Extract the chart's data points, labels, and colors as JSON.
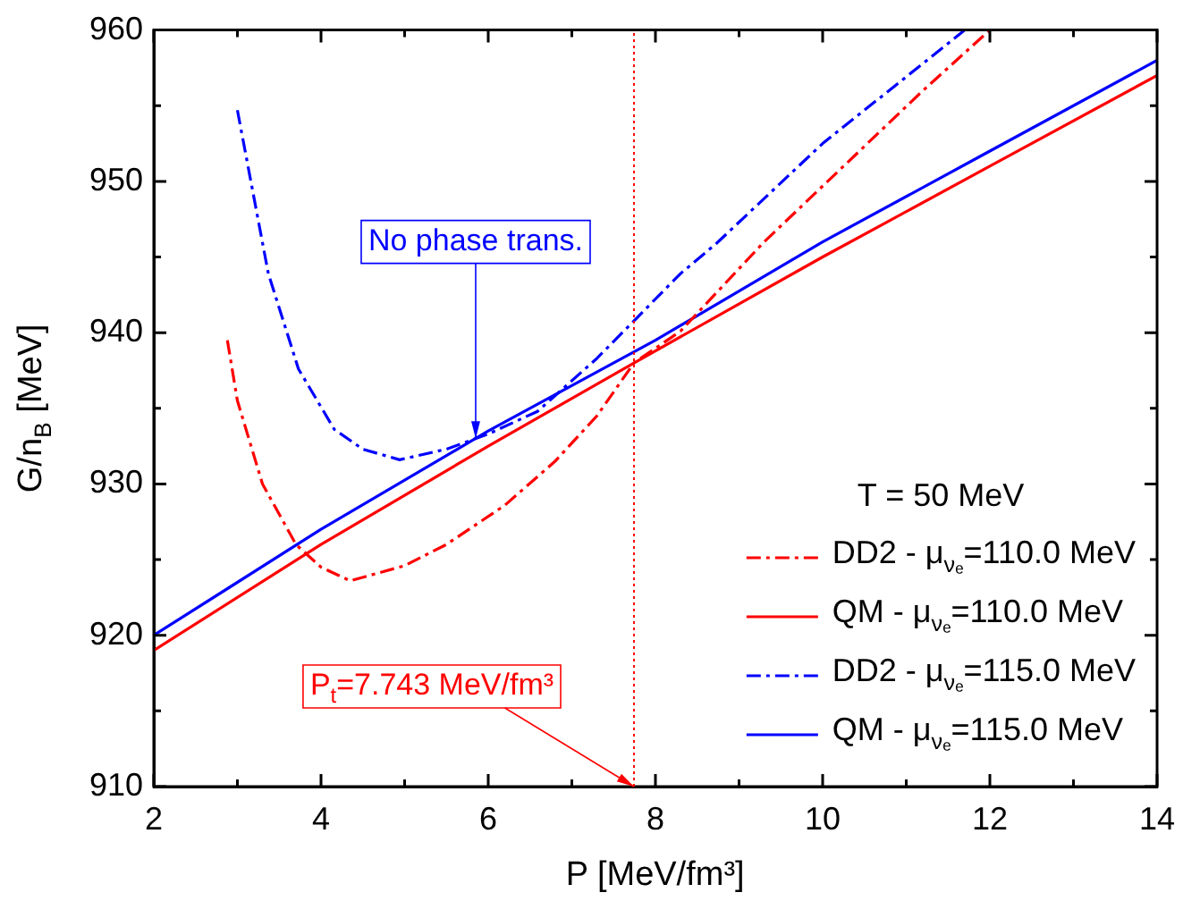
{
  "chart_data": {
    "type": "line",
    "xlabel": "P [MeV/fm³]",
    "ylabel": "G/n$_{B}$ [MeV]",
    "legend_title": "T = 50 MeV",
    "legend": "bottom right",
    "grid": false,
    "marker": "none",
    "xlim": [
      2,
      14
    ],
    "ylim": [
      910,
      960
    ],
    "xticks": [
      2,
      {
        "value": 3,
        "label": null
      },
      4,
      {
        "value": 5,
        "label": null
      },
      6,
      {
        "value": 7,
        "label": null
      },
      8,
      {
        "value": 9,
        "label": null
      },
      10,
      {
        "value": 11,
        "label": null
      },
      12,
      {
        "value": 13,
        "label": null
      },
      14
    ],
    "yticks": [
      910,
      {
        "value": 915,
        "label": null
      },
      920,
      {
        "value": 925,
        "label": null
      },
      930,
      {
        "value": 935,
        "label": null
      },
      940,
      {
        "value": 945,
        "label": null
      },
      950,
      {
        "value": 955,
        "label": null
      },
      960
    ],
    "series": [
      {
        "name": "DD2 - μ$_{νₑ}$=110.0 MeV",
        "color": "#ff0000",
        "line_style": "dashdot",
        "x": [
          2.88,
          3.0,
          3.3,
          3.7,
          4.0,
          4.35,
          5.0,
          5.5,
          6.2,
          6.8,
          7.3,
          7.743,
          8.3,
          9.3,
          10.44,
          11.2,
          12.0
        ],
        "values": [
          939.5,
          935.5,
          930,
          926,
          924.5,
          923.6,
          924.6,
          926,
          928.6,
          931.5,
          934.5,
          938,
          940.1,
          946,
          952,
          956,
          960
        ]
      },
      {
        "name": "QM - μ$_{νₑ}$=110.0 MeV",
        "color": "#ff0000",
        "line_style": "solid",
        "x": [
          2,
          4,
          6,
          7.743,
          10,
          12,
          14
        ],
        "values": [
          919,
          926,
          932.5,
          938,
          945,
          951,
          957
        ]
      },
      {
        "name": "DD2 - μ$_{νₑ}$=115.0 MeV",
        "color": "#0000ff",
        "line_style": "dashdot",
        "x": [
          3.0,
          3.37,
          3.73,
          4.16,
          4.5,
          4.94,
          5.5,
          6.0,
          6.59,
          7.3,
          8.3,
          8.73,
          10.0,
          11.7
        ],
        "values": [
          954.7,
          943.9,
          937.6,
          933.6,
          932.3,
          931.6,
          932.3,
          933.3,
          934.8,
          938.3,
          943.9,
          945.9,
          952.5,
          960
        ]
      },
      {
        "name": "QM - μ$_{νₑ}$=115.0 MeV",
        "color": "#0000ff",
        "line_style": "solid",
        "x": [
          2,
          4,
          6,
          8,
          10,
          12,
          14
        ],
        "values": [
          920,
          927,
          933.5,
          939.5,
          946,
          952,
          958
        ]
      }
    ],
    "ref_lines": [
      {
        "axis": "x",
        "value": 7.743,
        "color": "#ff0000",
        "line_style": "dotted"
      }
    ],
    "annotations": [
      {
        "text": "No phase trans.",
        "x": 5.85,
        "y": 933
      },
      {
        "text": "P$_{t}$=7.743 MeV/fm³",
        "x": 7.743,
        "y": 910
      }
    ]
  }
}
